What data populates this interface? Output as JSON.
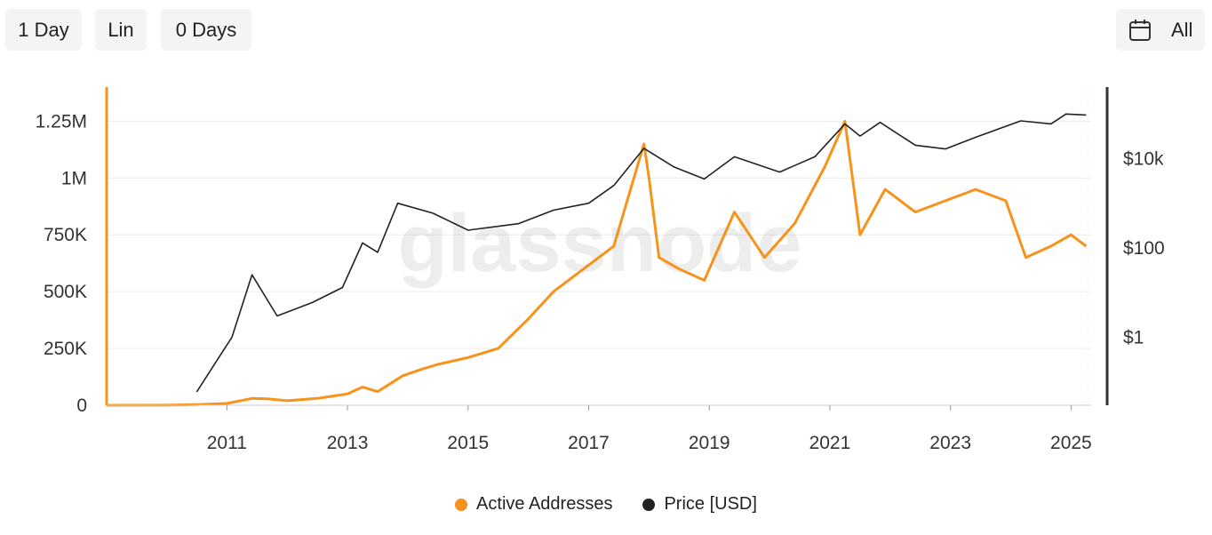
{
  "toolbar": {
    "resolution_label": "1 Day",
    "scale_label": "Lin",
    "moving_average_label": "0 Days",
    "range_label": "All",
    "range_icon": "calendar-icon"
  },
  "colors": {
    "active_addresses": "#f7931a",
    "price": "#222222",
    "grid": "#ececec",
    "axis_left": "#f7931a",
    "axis_right": "#333333"
  },
  "watermark": "glassnode",
  "chart_data": {
    "type": "line",
    "x_ticks": [
      "2011",
      "2013",
      "2015",
      "2017",
      "2019",
      "2021",
      "2023",
      "2025"
    ],
    "x_range": [
      "2009-01-03",
      "2025-05-01"
    ],
    "left_axis": {
      "ticks": [
        {
          "value": 0,
          "label": "0"
        },
        {
          "value": 250000,
          "label": "250K"
        },
        {
          "value": 500000,
          "label": "500K"
        },
        {
          "value": 750000,
          "label": "750K"
        },
        {
          "value": 1000000,
          "label": "1M"
        },
        {
          "value": 1250000,
          "label": "1.25M"
        }
      ],
      "range": [
        0,
        1400000
      ]
    },
    "right_axis": {
      "scale": "log",
      "ticks": [
        {
          "value": 1,
          "label": "$1"
        },
        {
          "value": 100,
          "label": "$100"
        },
        {
          "value": 10000,
          "label": "$10k"
        }
      ],
      "range": [
        0.03,
        400000
      ]
    },
    "grid": true,
    "legend_position": "bottom-center",
    "series": [
      {
        "name": "Active Addresses",
        "axis": "left",
        "points": [
          [
            "2009-01",
            0
          ],
          [
            "2010-01",
            500
          ],
          [
            "2010-07",
            3000
          ],
          [
            "2011-01",
            8000
          ],
          [
            "2011-06",
            30000
          ],
          [
            "2011-09",
            28000
          ],
          [
            "2012-01",
            20000
          ],
          [
            "2012-07",
            30000
          ],
          [
            "2013-01",
            50000
          ],
          [
            "2013-04",
            80000
          ],
          [
            "2013-07",
            60000
          ],
          [
            "2013-12",
            130000
          ],
          [
            "2014-04",
            160000
          ],
          [
            "2014-07",
            180000
          ],
          [
            "2015-01",
            210000
          ],
          [
            "2015-07",
            250000
          ],
          [
            "2016-01",
            380000
          ],
          [
            "2016-06",
            500000
          ],
          [
            "2016-12",
            600000
          ],
          [
            "2017-06",
            700000
          ],
          [
            "2017-12",
            1150000
          ],
          [
            "2018-01",
            1000000
          ],
          [
            "2018-03",
            650000
          ],
          [
            "2018-07",
            600000
          ],
          [
            "2018-12",
            550000
          ],
          [
            "2019-06",
            850000
          ],
          [
            "2019-12",
            650000
          ],
          [
            "2020-06",
            800000
          ],
          [
            "2020-12",
            1050000
          ],
          [
            "2021-04",
            1250000
          ],
          [
            "2021-07",
            750000
          ],
          [
            "2021-12",
            950000
          ],
          [
            "2022-06",
            850000
          ],
          [
            "2022-12",
            900000
          ],
          [
            "2023-06",
            950000
          ],
          [
            "2023-12",
            900000
          ],
          [
            "2024-04",
            650000
          ],
          [
            "2024-09",
            700000
          ],
          [
            "2025-01",
            750000
          ],
          [
            "2025-04",
            700000
          ]
        ]
      },
      {
        "name": "Price [USD]",
        "axis": "right",
        "points": [
          [
            "2010-07",
            0.06
          ],
          [
            "2010-11",
            0.3
          ],
          [
            "2011-02",
            1
          ],
          [
            "2011-06",
            25
          ],
          [
            "2011-11",
            3
          ],
          [
            "2012-06",
            6
          ],
          [
            "2012-12",
            13
          ],
          [
            "2013-04",
            130
          ],
          [
            "2013-07",
            80
          ],
          [
            "2013-11",
            1000
          ],
          [
            "2014-06",
            600
          ],
          [
            "2015-01",
            250
          ],
          [
            "2015-11",
            350
          ],
          [
            "2016-06",
            700
          ],
          [
            "2017-01",
            1000
          ],
          [
            "2017-06",
            2500
          ],
          [
            "2017-12",
            17000
          ],
          [
            "2018-06",
            6500
          ],
          [
            "2018-12",
            3500
          ],
          [
            "2019-06",
            11000
          ],
          [
            "2020-03",
            5000
          ],
          [
            "2020-10",
            11000
          ],
          [
            "2021-04",
            60000
          ],
          [
            "2021-07",
            32000
          ],
          [
            "2021-11",
            65000
          ],
          [
            "2022-06",
            20000
          ],
          [
            "2022-12",
            16500
          ],
          [
            "2023-06",
            30000
          ],
          [
            "2024-03",
            70000
          ],
          [
            "2024-09",
            60000
          ],
          [
            "2024-12",
            100000
          ],
          [
            "2025-04",
            95000
          ]
        ]
      }
    ]
  }
}
